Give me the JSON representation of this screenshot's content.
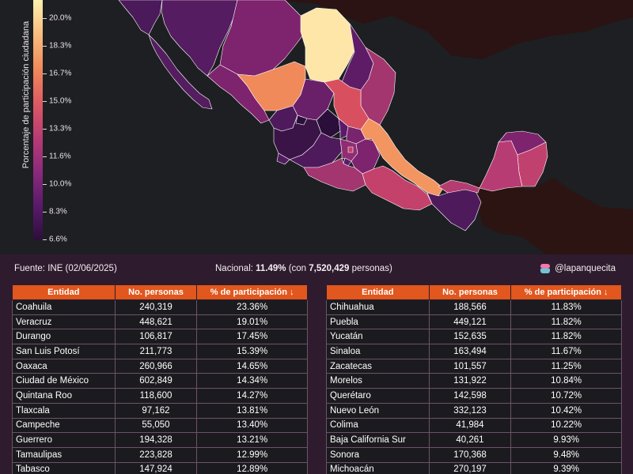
{
  "legend": {
    "title": "Porcentaje de participación ciudadana",
    "ticks": [
      "20.0%",
      "18.3%",
      "16.7%",
      "15.0%",
      "13.3%",
      "11.6%",
      "10.0%",
      "8.3%",
      "6.6%"
    ]
  },
  "info": {
    "source": "Fuente: INE (02/06/2025)",
    "national_prefix": "Nacional: ",
    "national_value": "11.49%",
    "national_mid": " (con ",
    "national_count": "7,520,429",
    "national_suffix": " personas)",
    "credit": "@lapanquecita"
  },
  "table": {
    "headers": [
      "Entidad",
      "No. personas",
      "% de participación ↓"
    ],
    "left": [
      [
        "Coahuila",
        "240,319",
        "23.36%"
      ],
      [
        "Veracruz",
        "448,621",
        "19.01%"
      ],
      [
        "Durango",
        "106,817",
        "17.45%"
      ],
      [
        "San Luis Potosí",
        "211,773",
        "15.39%"
      ],
      [
        "Oaxaca",
        "260,966",
        "14.65%"
      ],
      [
        "Ciudad de México",
        "602,849",
        "14.34%"
      ],
      [
        "Quintana Roo",
        "118,600",
        "14.27%"
      ],
      [
        "Tlaxcala",
        "97,162",
        "13.81%"
      ],
      [
        "Campeche",
        "55,050",
        "13.40%"
      ],
      [
        "Guerrero",
        "194,328",
        "13.21%"
      ],
      [
        "Tamaulipas",
        "223,828",
        "12.99%"
      ],
      [
        "Tabasco",
        "147,924",
        "12.89%"
      ]
    ],
    "right": [
      [
        "Chihuahua",
        "188,566",
        "11.83%"
      ],
      [
        "Puebla",
        "449,121",
        "11.82%"
      ],
      [
        "Yucatán",
        "152,635",
        "11.82%"
      ],
      [
        "Sinaloa",
        "163,494",
        "11.67%"
      ],
      [
        "Zacatecas",
        "101,557",
        "11.25%"
      ],
      [
        "Morelos",
        "131,922",
        "10.84%"
      ],
      [
        "Querétaro",
        "142,598",
        "10.72%"
      ],
      [
        "Nuevo León",
        "332,123",
        "10.42%"
      ],
      [
        "Colima",
        "41,984",
        "10.22%"
      ],
      [
        "Baja California Sur",
        "40,261",
        "9.93%"
      ],
      [
        "Sonora",
        "170,368",
        "9.48%"
      ],
      [
        "Michoacán",
        "270,197",
        "9.39%"
      ]
    ]
  },
  "map": {
    "colors": {
      "background": "#1e1f22",
      "us_land": "#2a1312",
      "central_america": "#2b1412",
      "ocean": "#1e1f22",
      "border": "#ffffff"
    }
  }
}
